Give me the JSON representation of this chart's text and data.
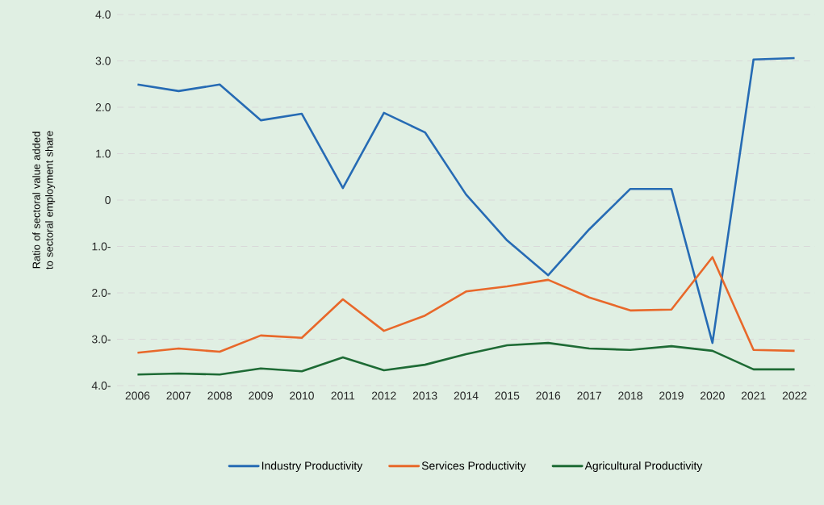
{
  "chart_data": {
    "type": "line",
    "ylabel": "Ratio of sectoral value added to sectoral employment share",
    "categories": [
      "2006",
      "2007",
      "2008",
      "2009",
      "2010",
      "2011",
      "2012",
      "2013",
      "2014",
      "2015",
      "2016",
      "2017",
      "2018",
      "2019",
      "2020",
      "2021",
      "2022"
    ],
    "series": [
      {
        "name": "Industry Productivity",
        "color": "#266bb4",
        "values": [
          2.49,
          2.35,
          2.49,
          1.72,
          1.86,
          0.26,
          1.88,
          1.46,
          0.12,
          -0.87,
          -1.62,
          -0.63,
          0.24,
          0.24,
          -3.08,
          3.03,
          3.06
        ]
      },
      {
        "name": "Services Productivity",
        "color": "#e8682a",
        "values": [
          -3.29,
          -3.2,
          -3.27,
          -2.92,
          -2.97,
          -2.14,
          -2.82,
          -2.49,
          -1.97,
          -1.86,
          -1.72,
          -2.1,
          -2.38,
          -2.36,
          -1.23,
          -3.23,
          -3.25
        ]
      },
      {
        "name": "Agricultural Productivity",
        "color": "#1e6b35",
        "values": [
          -3.76,
          -3.74,
          -3.76,
          -3.63,
          -3.69,
          -3.39,
          -3.67,
          -3.55,
          -3.32,
          -3.13,
          -3.08,
          -3.2,
          -3.23,
          -3.15,
          -3.25,
          -3.65,
          -3.65
        ]
      }
    ],
    "ylim": [
      -4,
      4
    ],
    "yticks": [
      {
        "value": 4,
        "label": "4.0"
      },
      {
        "value": 3,
        "label": "3.0"
      },
      {
        "value": 2,
        "label": "2.0"
      },
      {
        "value": 1,
        "label": "1.0"
      },
      0,
      {
        "value": -1,
        "label": "1.0-"
      },
      {
        "value": -2,
        "label": "2.0-"
      },
      {
        "value": -3,
        "label": "3.0-"
      },
      {
        "value": -4,
        "label": "4.0-"
      }
    ],
    "grid": "y",
    "legend": "bottom"
  }
}
